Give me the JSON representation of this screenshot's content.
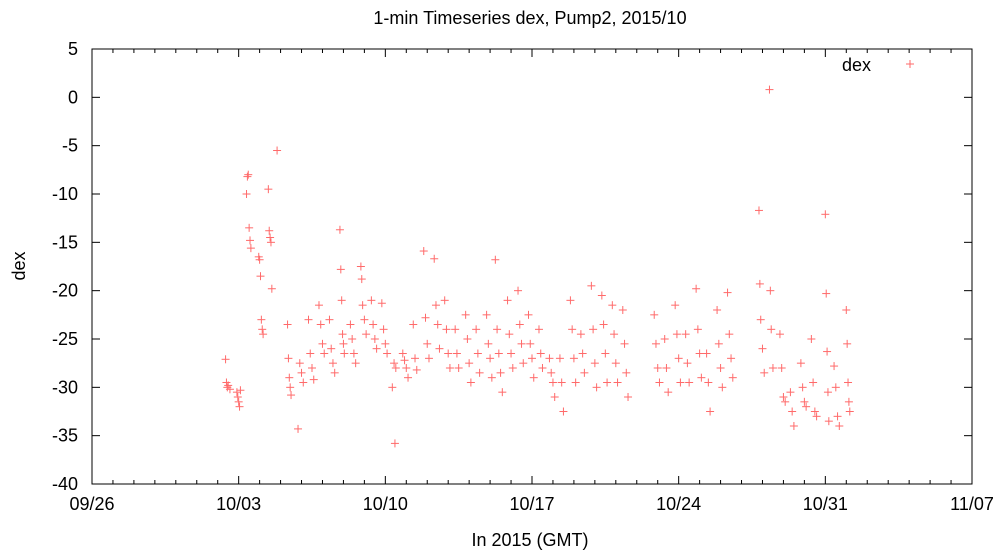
{
  "chart_data": {
    "type": "scatter",
    "title": "1-min Timeseries dex, Pump2, 2015/10",
    "xlabel": "In 2015 (GMT)",
    "ylabel": "dex",
    "legend": {
      "label": "dex",
      "position": "top-right"
    },
    "marker": "+",
    "color": "#ff6a6a",
    "grid": false,
    "xlim": [
      "2015-09-26",
      "2015-11-07"
    ],
    "ylim": [
      -40,
      5
    ],
    "xticks": [
      "09/26",
      "10/03",
      "10/10",
      "10/17",
      "10/24",
      "10/31",
      "11/07"
    ],
    "yticks": [
      5,
      0,
      -5,
      -10,
      -15,
      -20,
      -25,
      -30,
      -35,
      -40
    ],
    "series": [
      {
        "name": "dex",
        "points": [
          [
            "2015-10-02 09:00",
            -27.1
          ],
          [
            "2015-10-02 10:00",
            -29.5
          ],
          [
            "2015-10-02 11:00",
            -30.0
          ],
          [
            "2015-10-02 12:00",
            -29.8
          ],
          [
            "2015-10-02 14:00",
            -30.2
          ],
          [
            "2015-10-02 22:00",
            -30.5
          ],
          [
            "2015-10-02 23:00",
            -31.0
          ],
          [
            "2015-10-03 00:00",
            -31.5
          ],
          [
            "2015-10-03 01:00",
            -32.0
          ],
          [
            "2015-10-03 02:00",
            -30.3
          ],
          [
            "2015-10-03 09:00",
            -10.0
          ],
          [
            "2015-10-03 10:00",
            -8.2
          ],
          [
            "2015-10-03 11:00",
            -8.0
          ],
          [
            "2015-10-03 12:00",
            -13.5
          ],
          [
            "2015-10-03 13:00",
            -14.8
          ],
          [
            "2015-10-03 14:00",
            -15.6
          ],
          [
            "2015-10-03 23:00",
            -16.5
          ],
          [
            "2015-10-04 00:00",
            -16.8
          ],
          [
            "2015-10-04 01:00",
            -18.5
          ],
          [
            "2015-10-04 02:00",
            -23.0
          ],
          [
            "2015-10-04 03:00",
            -24.0
          ],
          [
            "2015-10-04 04:00",
            -24.5
          ],
          [
            "2015-10-04 10:00",
            -9.5
          ],
          [
            "2015-10-04 11:00",
            -13.8
          ],
          [
            "2015-10-04 12:00",
            -14.5
          ],
          [
            "2015-10-04 13:00",
            -15.0
          ],
          [
            "2015-10-04 14:00",
            -19.8
          ],
          [
            "2015-10-04 20:00",
            -5.5
          ],
          [
            "2015-10-05 08:00",
            -23.5
          ],
          [
            "2015-10-05 09:00",
            -27.0
          ],
          [
            "2015-10-05 10:00",
            -29.0
          ],
          [
            "2015-10-05 11:00",
            -30.0
          ],
          [
            "2015-10-05 12:00",
            -30.8
          ],
          [
            "2015-10-05 20:00",
            -34.3
          ],
          [
            "2015-10-05 22:00",
            -27.5
          ],
          [
            "2015-10-06 00:00",
            -28.5
          ],
          [
            "2015-10-06 02:00",
            -29.5
          ],
          [
            "2015-10-06 08:00",
            -23.0
          ],
          [
            "2015-10-06 10:00",
            -26.5
          ],
          [
            "2015-10-06 12:00",
            -28.0
          ],
          [
            "2015-10-06 14:00",
            -29.2
          ],
          [
            "2015-10-06 20:00",
            -21.5
          ],
          [
            "2015-10-06 22:00",
            -23.5
          ],
          [
            "2015-10-07 00:00",
            -25.5
          ],
          [
            "2015-10-07 02:00",
            -26.5
          ],
          [
            "2015-10-07 08:00",
            -23.0
          ],
          [
            "2015-10-07 10:00",
            -26.0
          ],
          [
            "2015-10-07 12:00",
            -27.5
          ],
          [
            "2015-10-07 14:00",
            -28.5
          ],
          [
            "2015-10-07 20:00",
            -13.7
          ],
          [
            "2015-10-07 21:00",
            -17.8
          ],
          [
            "2015-10-07 22:00",
            -21.0
          ],
          [
            "2015-10-07 23:00",
            -24.5
          ],
          [
            "2015-10-08 00:00",
            -25.5
          ],
          [
            "2015-10-08 01:00",
            -26.5
          ],
          [
            "2015-10-08 08:00",
            -23.5
          ],
          [
            "2015-10-08 10:00",
            -25.0
          ],
          [
            "2015-10-08 12:00",
            -26.5
          ],
          [
            "2015-10-08 14:00",
            -27.5
          ],
          [
            "2015-10-08 20:00",
            -17.5
          ],
          [
            "2015-10-08 21:00",
            -18.8
          ],
          [
            "2015-10-08 22:00",
            -21.5
          ],
          [
            "2015-10-09 00:00",
            -23.0
          ],
          [
            "2015-10-09 02:00",
            -24.5
          ],
          [
            "2015-10-09 08:00",
            -21.0
          ],
          [
            "2015-10-09 10:00",
            -23.5
          ],
          [
            "2015-10-09 12:00",
            -25.0
          ],
          [
            "2015-10-09 14:00",
            -26.0
          ],
          [
            "2015-10-09 20:00",
            -21.3
          ],
          [
            "2015-10-09 22:00",
            -24.0
          ],
          [
            "2015-10-10 00:00",
            -25.5
          ],
          [
            "2015-10-10 02:00",
            -26.5
          ],
          [
            "2015-10-10 08:00",
            -30.0
          ],
          [
            "2015-10-10 10:00",
            -27.5
          ],
          [
            "2015-10-10 11:00",
            -35.8
          ],
          [
            "2015-10-10 12:00",
            -28.0
          ],
          [
            "2015-10-10 20:00",
            -26.5
          ],
          [
            "2015-10-10 22:00",
            -27.2
          ],
          [
            "2015-10-11 00:00",
            -28.0
          ],
          [
            "2015-10-11 02:00",
            -29.0
          ],
          [
            "2015-10-11 08:00",
            -23.5
          ],
          [
            "2015-10-11 10:00",
            -27.0
          ],
          [
            "2015-10-11 12:00",
            -28.2
          ],
          [
            "2015-10-11 20:00",
            -15.9
          ],
          [
            "2015-10-11 22:00",
            -22.8
          ],
          [
            "2015-10-12 00:00",
            -25.5
          ],
          [
            "2015-10-12 02:00",
            -27.0
          ],
          [
            "2015-10-12 08:00",
            -16.7
          ],
          [
            "2015-10-12 10:00",
            -21.5
          ],
          [
            "2015-10-12 12:00",
            -23.5
          ],
          [
            "2015-10-12 14:00",
            -26.0
          ],
          [
            "2015-10-12 20:00",
            -21.0
          ],
          [
            "2015-10-12 22:00",
            -24.0
          ],
          [
            "2015-10-13 00:00",
            -26.5
          ],
          [
            "2015-10-13 02:00",
            -28.0
          ],
          [
            "2015-10-13 08:00",
            -24.0
          ],
          [
            "2015-10-13 10:00",
            -26.5
          ],
          [
            "2015-10-13 12:00",
            -28.0
          ],
          [
            "2015-10-13 20:00",
            -22.5
          ],
          [
            "2015-10-13 22:00",
            -25.0
          ],
          [
            "2015-10-14 00:00",
            -27.5
          ],
          [
            "2015-10-14 02:00",
            -29.5
          ],
          [
            "2015-10-14 08:00",
            -24.0
          ],
          [
            "2015-10-14 10:00",
            -26.5
          ],
          [
            "2015-10-14 12:00",
            -28.5
          ],
          [
            "2015-10-14 20:00",
            -22.5
          ],
          [
            "2015-10-14 22:00",
            -25.5
          ],
          [
            "2015-10-15 00:00",
            -27.0
          ],
          [
            "2015-10-15 02:00",
            -29.0
          ],
          [
            "2015-10-15 06:00",
            -16.8
          ],
          [
            "2015-10-15 08:00",
            -24.0
          ],
          [
            "2015-10-15 10:00",
            -26.5
          ],
          [
            "2015-10-15 12:00",
            -28.5
          ],
          [
            "2015-10-15 14:00",
            -30.5
          ],
          [
            "2015-10-15 20:00",
            -21.0
          ],
          [
            "2015-10-15 22:00",
            -24.5
          ],
          [
            "2015-10-16 00:00",
            -26.5
          ],
          [
            "2015-10-16 02:00",
            -28.0
          ],
          [
            "2015-10-16 08:00",
            -20.0
          ],
          [
            "2015-10-16 10:00",
            -23.5
          ],
          [
            "2015-10-16 12:00",
            -25.5
          ],
          [
            "2015-10-16 14:00",
            -27.5
          ],
          [
            "2015-10-16 20:00",
            -22.5
          ],
          [
            "2015-10-16 22:00",
            -25.5
          ],
          [
            "2015-10-17 00:00",
            -27.0
          ],
          [
            "2015-10-17 02:00",
            -29.0
          ],
          [
            "2015-10-17 08:00",
            -24.0
          ],
          [
            "2015-10-17 10:00",
            -26.5
          ],
          [
            "2015-10-17 12:00",
            -28.0
          ],
          [
            "2015-10-17 20:00",
            -27.0
          ],
          [
            "2015-10-17 22:00",
            -28.5
          ],
          [
            "2015-10-18 00:00",
            -29.5
          ],
          [
            "2015-10-18 02:00",
            -31.0
          ],
          [
            "2015-10-18 08:00",
            -27.0
          ],
          [
            "2015-10-18 10:00",
            -29.5
          ],
          [
            "2015-10-18 12:00",
            -32.5
          ],
          [
            "2015-10-18 20:00",
            -21.0
          ],
          [
            "2015-10-18 22:00",
            -24.0
          ],
          [
            "2015-10-19 00:00",
            -27.0
          ],
          [
            "2015-10-19 02:00",
            -29.5
          ],
          [
            "2015-10-19 08:00",
            -24.5
          ],
          [
            "2015-10-19 10:00",
            -26.5
          ],
          [
            "2015-10-19 12:00",
            -28.5
          ],
          [
            "2015-10-19 20:00",
            -19.5
          ],
          [
            "2015-10-19 22:00",
            -24.0
          ],
          [
            "2015-10-20 00:00",
            -27.5
          ],
          [
            "2015-10-20 02:00",
            -30.0
          ],
          [
            "2015-10-20 08:00",
            -20.5
          ],
          [
            "2015-10-20 10:00",
            -23.5
          ],
          [
            "2015-10-20 12:00",
            -26.5
          ],
          [
            "2015-10-20 14:00",
            -29.5
          ],
          [
            "2015-10-20 20:00",
            -21.5
          ],
          [
            "2015-10-20 22:00",
            -24.5
          ],
          [
            "2015-10-21 00:00",
            -27.5
          ],
          [
            "2015-10-21 02:00",
            -29.5
          ],
          [
            "2015-10-21 08:00",
            -22.0
          ],
          [
            "2015-10-21 10:00",
            -25.5
          ],
          [
            "2015-10-21 12:00",
            -28.5
          ],
          [
            "2015-10-21 14:00",
            -31.0
          ],
          [
            "2015-10-22 20:00",
            -22.5
          ],
          [
            "2015-10-22 22:00",
            -25.5
          ],
          [
            "2015-10-23 00:00",
            -28.0
          ],
          [
            "2015-10-23 02:00",
            -29.5
          ],
          [
            "2015-10-23 08:00",
            -25.0
          ],
          [
            "2015-10-23 10:00",
            -28.0
          ],
          [
            "2015-10-23 12:00",
            -30.5
          ],
          [
            "2015-10-23 20:00",
            -21.5
          ],
          [
            "2015-10-23 22:00",
            -24.5
          ],
          [
            "2015-10-24 00:00",
            -27.0
          ],
          [
            "2015-10-24 02:00",
            -29.5
          ],
          [
            "2015-10-24 08:00",
            -24.5
          ],
          [
            "2015-10-24 10:00",
            -27.5
          ],
          [
            "2015-10-24 12:00",
            -29.5
          ],
          [
            "2015-10-24 20:00",
            -19.8
          ],
          [
            "2015-10-24 22:00",
            -24.0
          ],
          [
            "2015-10-25 00:00",
            -26.5
          ],
          [
            "2015-10-25 02:00",
            -29.0
          ],
          [
            "2015-10-25 08:00",
            -26.5
          ],
          [
            "2015-10-25 10:00",
            -29.5
          ],
          [
            "2015-10-25 12:00",
            -32.5
          ],
          [
            "2015-10-25 20:00",
            -22.0
          ],
          [
            "2015-10-25 22:00",
            -25.5
          ],
          [
            "2015-10-26 00:00",
            -28.0
          ],
          [
            "2015-10-26 02:00",
            -30.0
          ],
          [
            "2015-10-26 08:00",
            -20.2
          ],
          [
            "2015-10-26 10:00",
            -24.5
          ],
          [
            "2015-10-26 12:00",
            -27.0
          ],
          [
            "2015-10-26 14:00",
            -29.0
          ],
          [
            "2015-10-27 20:00",
            -11.7
          ],
          [
            "2015-10-27 21:00",
            -19.3
          ],
          [
            "2015-10-27 22:00",
            -23.0
          ],
          [
            "2015-10-28 00:00",
            -26.0
          ],
          [
            "2015-10-28 02:00",
            -28.5
          ],
          [
            "2015-10-28 08:00",
            0.8
          ],
          [
            "2015-10-28 09:00",
            -20.0
          ],
          [
            "2015-10-28 10:00",
            -24.0
          ],
          [
            "2015-10-28 12:00",
            -28.0
          ],
          [
            "2015-10-28 20:00",
            -24.5
          ],
          [
            "2015-10-28 22:00",
            -28.0
          ],
          [
            "2015-10-29 00:00",
            -31.0
          ],
          [
            "2015-10-29 02:00",
            -31.5
          ],
          [
            "2015-10-29 08:00",
            -30.5
          ],
          [
            "2015-10-29 10:00",
            -32.5
          ],
          [
            "2015-10-29 12:00",
            -34.0
          ],
          [
            "2015-10-29 20:00",
            -27.5
          ],
          [
            "2015-10-29 22:00",
            -30.0
          ],
          [
            "2015-10-30 00:00",
            -31.5
          ],
          [
            "2015-10-30 02:00",
            -32.0
          ],
          [
            "2015-10-30 08:00",
            -25.0
          ],
          [
            "2015-10-30 10:00",
            -29.5
          ],
          [
            "2015-10-30 12:00",
            -32.5
          ],
          [
            "2015-10-30 14:00",
            -33.0
          ],
          [
            "2015-10-31 00:00",
            -12.1
          ],
          [
            "2015-10-31 01:00",
            -20.3
          ],
          [
            "2015-10-31 02:00",
            -26.3
          ],
          [
            "2015-10-31 03:00",
            -30.5
          ],
          [
            "2015-10-31 04:00",
            -33.5
          ],
          [
            "2015-10-31 10:00",
            -27.8
          ],
          [
            "2015-10-31 12:00",
            -30.0
          ],
          [
            "2015-10-31 14:00",
            -33.0
          ],
          [
            "2015-10-31 16:00",
            -34.0
          ],
          [
            "2015-11-01 00:00",
            -22.0
          ],
          [
            "2015-11-01 01:00",
            -25.5
          ],
          [
            "2015-11-01 02:00",
            -29.5
          ],
          [
            "2015-11-01 03:00",
            -31.5
          ],
          [
            "2015-11-01 04:00",
            -32.5
          ]
        ]
      }
    ]
  }
}
